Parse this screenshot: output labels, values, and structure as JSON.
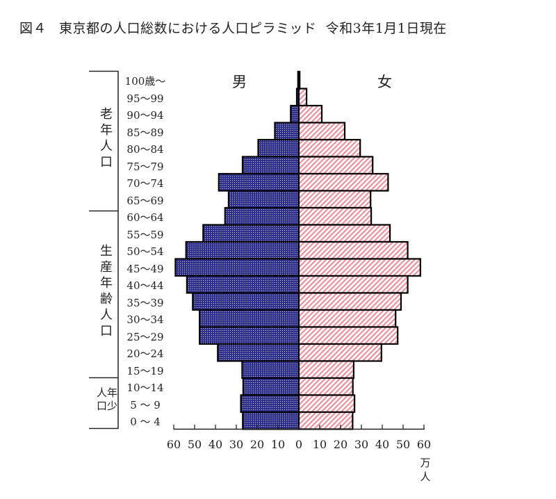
{
  "title": {
    "figure_no": "図４",
    "text": "東京都の人口総数における人口ピラミッド",
    "date": "令和3年1月1日現在"
  },
  "labels": {
    "male": "男",
    "female": "女",
    "unit_line1": "万",
    "unit_line2": "人"
  },
  "groups": {
    "elderly": [
      "老",
      "年",
      "人",
      "口"
    ],
    "working": [
      "生",
      "産",
      "年",
      "齢",
      "人",
      "口"
    ],
    "young_col1": [
      "人",
      "口"
    ],
    "young_col2": [
      "年",
      "少"
    ]
  },
  "colors": {
    "male_fill": "#2e2e8c",
    "male_dot": "#d8d8f0",
    "female_fill": "#ffffff",
    "female_stripe": "#e8909c",
    "outline": "#000000"
  },
  "chart_data": {
    "type": "bar",
    "orientation": "horizontal-pyramid",
    "title": "図４ 東京都の人口総数における人口ピラミッド 令和3年1月1日現在",
    "xlabel": "万人",
    "ylabel": "",
    "xlim": [
      -60,
      60
    ],
    "x_ticks": [
      60,
      50,
      40,
      30,
      20,
      10,
      0,
      10,
      20,
      30,
      40,
      50,
      60
    ],
    "grid": false,
    "legend": [
      "男",
      "女"
    ],
    "categories": [
      "100歳～",
      "95～99",
      "90～94",
      "85～89",
      "80～84",
      "75～79",
      "70～74",
      "65～69",
      "60～64",
      "55～59",
      "50～54",
      "45～49",
      "40～44",
      "35～39",
      "30～34",
      "25～29",
      "20～24",
      "15～19",
      "10～14",
      "5 ～ 9",
      "0 ～ 4"
    ],
    "series": [
      {
        "name": "男",
        "values": [
          0.4,
          1.0,
          3.9,
          11.5,
          19.5,
          27.0,
          38.4,
          33.7,
          35.4,
          45.9,
          54.1,
          59.2,
          53.7,
          50.9,
          47.6,
          47.6,
          38.9,
          27.2,
          26.7,
          27.8,
          26.9
        ]
      },
      {
        "name": "女",
        "values": [
          0.4,
          3.7,
          11.0,
          22.0,
          29.4,
          35.4,
          42.8,
          34.4,
          34.7,
          43.7,
          52.2,
          58.3,
          52.2,
          49.0,
          46.4,
          47.4,
          39.6,
          26.3,
          25.9,
          26.7,
          25.8
        ]
      }
    ],
    "annotations": [
      "老年人口",
      "生産年齢人口",
      "年少人口"
    ]
  }
}
